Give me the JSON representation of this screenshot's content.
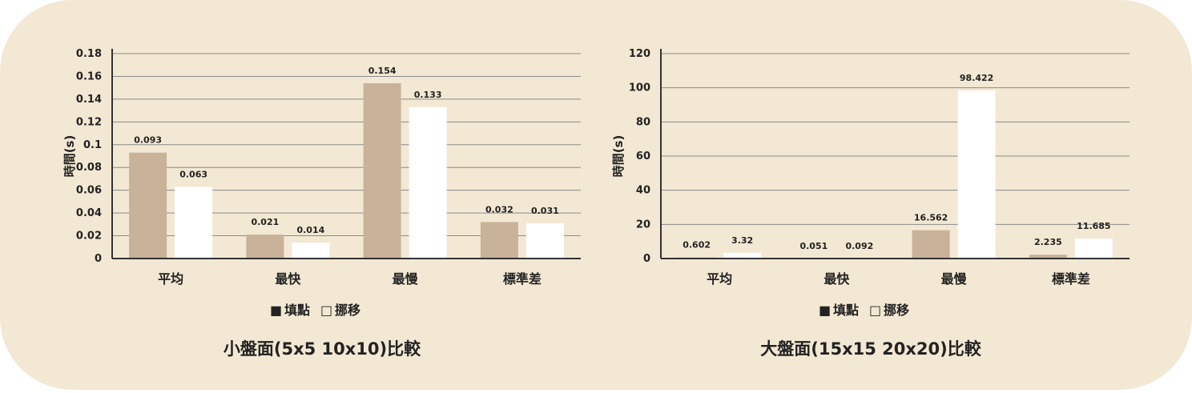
{
  "colors": {
    "background": "#f3e8d3",
    "series_fill": "#c8b29a",
    "series_move": "#ffffff",
    "grid": "#8a8a8a",
    "axis": "#333333"
  },
  "chart_data": [
    {
      "type": "bar",
      "title": "小盤面(5x5 10x10)比較",
      "ylabel": "時間(s)",
      "categories": [
        "平均",
        "最快",
        "最慢",
        "標準差"
      ],
      "series": [
        {
          "name": "填點",
          "values": [
            0.093,
            0.021,
            0.154,
            0.032
          ],
          "labels": [
            "0.093",
            "0.021",
            "0.154",
            "0.032"
          ]
        },
        {
          "name": "挪移",
          "values": [
            0.063,
            0.014,
            0.133,
            0.031
          ],
          "labels": [
            "0.063",
            "0.014",
            "0.133",
            "0.031"
          ]
        }
      ],
      "ylim": [
        0,
        0.18
      ],
      "yticks": [
        0,
        0.02,
        0.04,
        0.06,
        0.08,
        0.1,
        0.12,
        0.14,
        0.16,
        0.18
      ],
      "ytick_labels": [
        "0",
        "0.02",
        "0.04",
        "0.06",
        "0.08",
        "0.1",
        "0.12",
        "0.14",
        "0.16",
        "0.18"
      ],
      "legend": {
        "placement": "bottom",
        "marker_fill": "■",
        "marker_move": "□"
      },
      "grid": true
    },
    {
      "type": "bar",
      "title": "大盤面(15x15 20x20)比較",
      "ylabel": "時間(s)",
      "categories": [
        "平均",
        "最快",
        "最慢",
        "標準差"
      ],
      "series": [
        {
          "name": "填點",
          "values": [
            0.602,
            0.051,
            16.562,
            2.235
          ],
          "labels": [
            "0.602",
            "0.051",
            "16.562",
            "2.235"
          ]
        },
        {
          "name": "挪移",
          "values": [
            3.32,
            0.092,
            98.422,
            11.685
          ],
          "labels": [
            "3.32",
            "0.092",
            "98.422",
            "11.685"
          ]
        }
      ],
      "ylim": [
        0,
        120
      ],
      "yticks": [
        0,
        20,
        40,
        60,
        80,
        100,
        120
      ],
      "ytick_labels": [
        "0",
        "20",
        "40",
        "60",
        "80",
        "100",
        "120"
      ],
      "legend": {
        "placement": "bottom",
        "marker_fill": "■",
        "marker_move": "□"
      },
      "grid": true
    }
  ]
}
